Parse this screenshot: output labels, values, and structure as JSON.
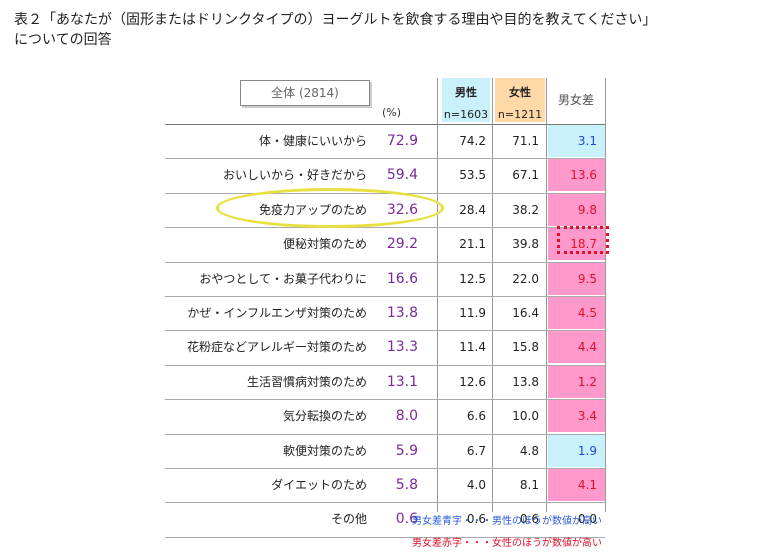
{
  "title": {
    "line1": "表２「あなたが（固形またはドリンクタイプの）ヨーグルトを飲食する理由や目的を教えてください」",
    "line2": "についての回答"
  },
  "header": {
    "total_label": "全体 (2814)",
    "unit": "(%)",
    "male_label": "男性",
    "male_n": "n=1603",
    "female_label": "女性",
    "female_n": "n=1211",
    "diff_label": "男女差"
  },
  "colors": {
    "male_bg": "#c9f1fb",
    "female_bg": "#ffd8a8",
    "male_high": "#1f4ad8",
    "female_high": "#e0102a",
    "female_high_bg": "#ff99cc",
    "total_text": "#7a2a9a"
  },
  "chart_data": {
    "type": "table",
    "columns": [
      "全体",
      "男性",
      "女性",
      "男女差"
    ],
    "rows": [
      {
        "label": "体・健康にいいから",
        "total": "72.9",
        "male": "74.2",
        "female": "71.1",
        "diff": "3.1",
        "higher": "male"
      },
      {
        "label": "おいしいから・好きだから",
        "total": "59.4",
        "male": "53.5",
        "female": "67.1",
        "diff": "13.6",
        "higher": "female"
      },
      {
        "label": "免疫力アップのため",
        "total": "32.6",
        "male": "28.4",
        "female": "38.2",
        "diff": "9.8",
        "higher": "female"
      },
      {
        "label": "便秘対策のため",
        "total": "29.2",
        "male": "21.1",
        "female": "39.8",
        "diff": "18.7",
        "higher": "female"
      },
      {
        "label": "おやつとして・お菓子代わりに",
        "total": "16.6",
        "male": "12.5",
        "female": "22.0",
        "diff": "9.5",
        "higher": "female"
      },
      {
        "label": "かぜ・インフルエンザ対策のため",
        "total": "13.8",
        "male": "11.9",
        "female": "16.4",
        "diff": "4.5",
        "higher": "female"
      },
      {
        "label": "花粉症などアレルギー対策のため",
        "total": "13.3",
        "male": "11.4",
        "female": "15.8",
        "diff": "4.4",
        "higher": "female"
      },
      {
        "label": "生活習慣病対策のため",
        "total": "13.1",
        "male": "12.6",
        "female": "13.8",
        "diff": "1.2",
        "higher": "female"
      },
      {
        "label": "気分転換のため",
        "total": "8.0",
        "male": "6.6",
        "female": "10.0",
        "diff": "3.4",
        "higher": "female"
      },
      {
        "label": "軟便対策のため",
        "total": "5.9",
        "male": "6.7",
        "female": "4.8",
        "diff": "1.9",
        "higher": "male"
      },
      {
        "label": "ダイエットのため",
        "total": "5.8",
        "male": "4.0",
        "female": "8.1",
        "diff": "4.1",
        "higher": "female"
      },
      {
        "label": "その他",
        "total": "0.6",
        "male": "0.6",
        "female": "0.6",
        "diff": "0.0",
        "higher": "none"
      }
    ]
  },
  "notes": {
    "blue": "男女差青字・・・男性のほうが数値が高い",
    "red": "男女差赤字・・・女性のほうが数値が高い"
  }
}
